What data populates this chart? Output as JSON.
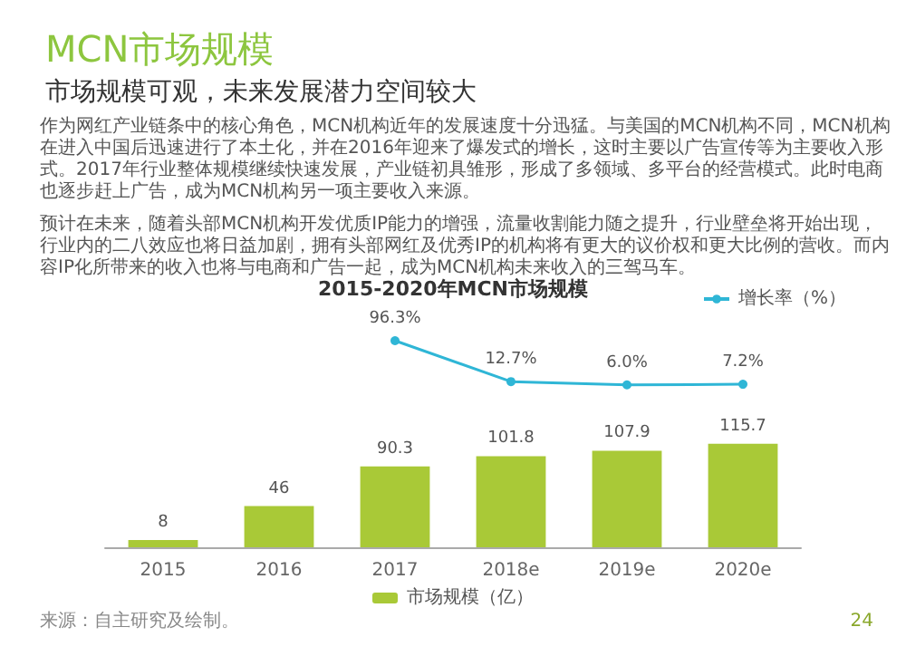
{
  "chart_data": [
    {
      "type": "line",
      "title": "MCN市场规模",
      "subtitle": "市场规模可观，未来发展潜力空间较大",
      "annotations": [
        "2015-2020年MCN市场规模",
        "作为网红产业链条中的核心角色，MCN机构近年的发展速度十分迅猛。与美国的MCN机构不同，MCN机构在进入中国后迅速进行了本土化，并在2016年迎来了爆发式的增长，这时主要以广告宣传等为主要收入形式。2017年行业整体规模继续快速发展，产业链初具雏形，形成了多领域、多平台的经营模式。此时电商也逐步赶上广告，成为MCN机构另一项主要收入来源。",
        "预计在未来，随着头部MCN机构开发优质IP能力的增强，流量收割能力随之提升，行业壁垒将开始出现，行业内的二八效应也将日益加剧，拥有头部网红及优秀IP的机构将有更大的议价权和更大比例的营收。而内容IP化所带来的收入也将与电商和广告一起，成为MCN机构未来收入的三驾马车。"
      ],
      "categories": [
        null,
        null,
        null,
        null,
        null,
        null
      ],
      "series": [
        {
          "name": "增长率（%）",
          "color": "#2fb6d6",
          "values": [
            null,
            null,
            96.3,
            12.7,
            6.0,
            7.2
          ],
          "value_labels": [
            null,
            null,
            "96.3%",
            "12.7%",
            "6.0%",
            "7.2%"
          ]
        }
      ],
      "tick_labels": false,
      "legend": "top right",
      "marker": "circle"
    },
    {
      "type": "bar",
      "annotations": [
        "来源：自主研究及绘制。",
        "24"
      ],
      "categories": [
        "2015",
        "2016",
        "2017",
        "2018e",
        "2019e",
        "2020e"
      ],
      "series": [
        {
          "name": "市场规模（亿）",
          "color": "#a9c937",
          "values": [
            8,
            46,
            90.3,
            101.8,
            107.9,
            115.7
          ]
        }
      ],
      "data_labels": true,
      "legend": "bottom"
    }
  ]
}
